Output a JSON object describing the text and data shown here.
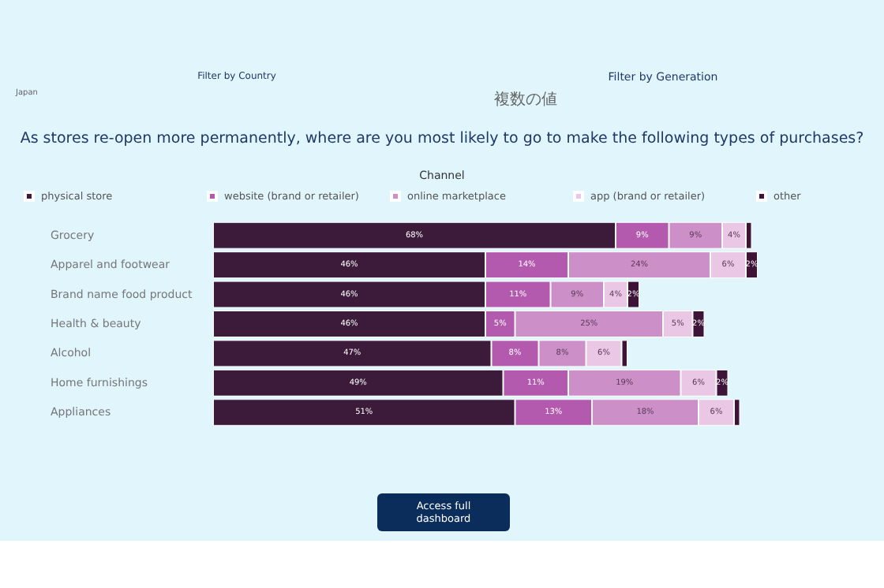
{
  "chart_data": {
    "type": "bar",
    "orientation": "horizontal",
    "stacked": true,
    "title": "As stores re-open more permanently, where are you most likely to go to make the following types of purchases?",
    "legend_title": "Channel",
    "legend": "top",
    "categories": [
      "Grocery",
      "Apparel and footwear",
      "Brand name food product",
      "Health & beauty",
      "Alcohol",
      "Home furnishings",
      "Appliances"
    ],
    "series": [
      {
        "name": "physical store",
        "color": "#3b1a3a",
        "values": [
          68,
          46,
          46,
          46,
          47,
          49,
          51
        ],
        "value_labels": [
          "68%",
          "46%",
          "46%",
          "46%",
          "47%",
          "49%",
          "51%"
        ]
      },
      {
        "name": "website (brand or retailer)",
        "color": "#b35aae",
        "values": [
          9,
          14,
          11,
          5,
          8,
          11,
          13
        ],
        "value_labels": [
          "9%",
          "14%",
          "11%",
          "5%",
          "8%",
          "11%",
          "13%"
        ]
      },
      {
        "name": "online marketplace",
        "color": "#cc8fc8",
        "values": [
          9,
          24,
          9,
          25,
          8,
          19,
          18
        ],
        "value_labels": [
          "9%",
          "24%",
          "9%",
          "25%",
          "8%",
          "19%",
          "18%"
        ]
      },
      {
        "name": "app (brand or retailer)",
        "color": "#ebc7e6",
        "values": [
          4,
          6,
          4,
          5,
          6,
          6,
          6
        ],
        "value_labels": [
          "4%",
          "6%",
          "4%",
          "5%",
          "6%",
          "6%",
          "6%"
        ]
      },
      {
        "name": "other",
        "color": "#3d1438",
        "values": [
          1,
          2,
          2,
          2,
          1,
          2,
          1
        ],
        "value_labels": [
          null,
          "2%",
          "2%",
          "2%",
          null,
          "2%",
          null
        ]
      }
    ],
    "annotations": [
      "Filter by Country",
      "Japan",
      "Filter by Generation",
      "複数の値",
      "Access full dashboard"
    ]
  }
}
